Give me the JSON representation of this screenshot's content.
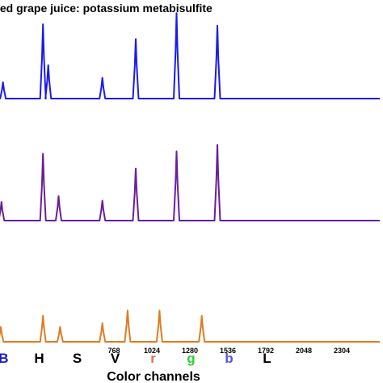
{
  "chart_data": {
    "type": "line",
    "title": "rated grape juice: potassium metabisulfite",
    "xlabel": "Color channels",
    "xlim": [
      0,
      2560
    ],
    "x_ticks": [
      768,
      1024,
      1280,
      1536,
      1792,
      2048,
      2304
    ],
    "channel_labels": [
      {
        "text": "B",
        "x": 16,
        "color": "#1a1acc"
      },
      {
        "text": "H",
        "x": 256,
        "color": "#000000"
      },
      {
        "text": "S",
        "x": 512,
        "color": "#000000"
      },
      {
        "text": "V",
        "x": 768,
        "color": "#000000"
      },
      {
        "text": "r",
        "x": 1024,
        "color": "#e86a5a"
      },
      {
        "text": "g",
        "x": 1280,
        "color": "#33cc33"
      },
      {
        "text": "b",
        "x": 1536,
        "color": "#5555dd"
      },
      {
        "text": "L",
        "x": 1792,
        "color": "#000000"
      }
    ],
    "series": [
      {
        "color": "#1a1aee",
        "peaks": [
          [
            20,
            0.22
          ],
          [
            290,
            1.0
          ],
          [
            325,
            0.45
          ],
          [
            690,
            0.28
          ],
          [
            915,
            0.8
          ],
          [
            1190,
            1.15
          ],
          [
            1465,
            0.98
          ]
        ]
      },
      {
        "color": "#6a1f9a",
        "peaks": [
          [
            10,
            0.25
          ],
          [
            290,
            0.9
          ],
          [
            395,
            0.33
          ],
          [
            690,
            0.27
          ],
          [
            915,
            0.7
          ],
          [
            1190,
            0.93
          ],
          [
            1465,
            1.02
          ]
        ]
      },
      {
        "color": "#e07b20",
        "peaks": [
          [
            5,
            0.2
          ],
          [
            290,
            0.35
          ],
          [
            405,
            0.2
          ],
          [
            690,
            0.25
          ],
          [
            860,
            0.42
          ],
          [
            1075,
            0.42
          ],
          [
            1360,
            0.35
          ]
        ]
      }
    ]
  }
}
